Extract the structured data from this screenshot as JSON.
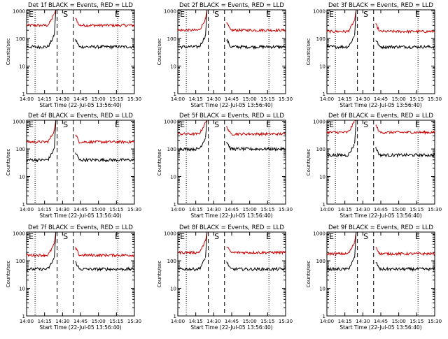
{
  "figure": {
    "x_title": "Start Time (22-Jul-05 13:56:40)",
    "y_title": "Counts/sec",
    "x_ticks": [
      "14:00",
      "14:15",
      "14:30",
      "14:45",
      "15:00",
      "15:15",
      "15:30"
    ],
    "y_ticks": [
      "1",
      "10",
      "100",
      "1000"
    ],
    "event_color": "#000000",
    "lld_color": "#cc0000"
  },
  "chart_data": [
    {
      "type": "line",
      "title": "Det 1f BLACK = Events, RED = LLD",
      "markers": [
        "E",
        "S",
        "E"
      ],
      "xlabel": "Start Time (22-Jul-05 13:56:40)",
      "ylabel": "Counts/sec",
      "yscale": "log",
      "ylim": [
        1,
        1100
      ],
      "xlim_minutes": [
        0,
        42
      ],
      "event_level": 50,
      "lld_level": 300,
      "gap_minutes": [
        36,
        50
      ],
      "series": [
        {
          "color": "#000000",
          "y": 50
        },
        {
          "color": "#cc0000",
          "y": 300
        }
      ]
    },
    {
      "type": "line",
      "title": "Det 2f BLACK = Events, RED = LLD",
      "markers": [
        "E",
        "S",
        "E"
      ],
      "xlabel": "Start Time (22-Jul-05 13:56:40)",
      "ylabel": "Counts/sec",
      "yscale": "log",
      "ylim": [
        1,
        1100
      ],
      "xlim_minutes": [
        0,
        42
      ],
      "event_level": 50,
      "lld_level": 200,
      "gap_minutes": [
        36,
        50
      ],
      "series": [
        {
          "color": "#000000",
          "y": 50
        },
        {
          "color": "#cc0000",
          "y": 200
        }
      ]
    },
    {
      "type": "line",
      "title": "Det 3f BLACK = Events, RED = LLD",
      "markers": [
        "E",
        "S",
        "E"
      ],
      "xlabel": "Start Time (22-Jul-05 13:56:40)",
      "ylabel": "Counts/sec",
      "yscale": "log",
      "ylim": [
        1,
        1100
      ],
      "xlim_minutes": [
        0,
        42
      ],
      "event_level": 50,
      "lld_level": 180,
      "gap_minutes": [
        36,
        50
      ],
      "series": [
        {
          "color": "#000000",
          "y": 50
        },
        {
          "color": "#cc0000",
          "y": 180
        }
      ]
    },
    {
      "type": "line",
      "title": "Det 4f BLACK = Events, RED = LLD",
      "markers": [
        "E",
        "S",
        "E"
      ],
      "xlabel": "Start Time (22-Jul-05 13:56:40)",
      "ylabel": "Counts/sec",
      "yscale": "log",
      "ylim": [
        1,
        1100
      ],
      "xlim_minutes": [
        0,
        42
      ],
      "event_level": 40,
      "lld_level": 180,
      "gap_minutes": [
        36,
        50
      ],
      "series": [
        {
          "color": "#000000",
          "y": 40
        },
        {
          "color": "#cc0000",
          "y": 180
        }
      ]
    },
    {
      "type": "line",
      "title": "Det 5f BLACK = Events, RED = LLD",
      "markers": [
        "E",
        "S",
        "E"
      ],
      "xlabel": "Start Time (22-Jul-05 13:56:40)",
      "ylabel": "Counts/sec",
      "yscale": "log",
      "ylim": [
        1,
        1100
      ],
      "xlim_minutes": [
        0,
        42
      ],
      "event_level": 100,
      "lld_level": 350,
      "gap_minutes": [
        36,
        50
      ],
      "series": [
        {
          "color": "#000000",
          "y": 100
        },
        {
          "color": "#cc0000",
          "y": 350
        }
      ]
    },
    {
      "type": "line",
      "title": "Det 6f BLACK = Events, RED = LLD",
      "markers": [
        "E",
        "S",
        "E"
      ],
      "xlabel": "Start Time (22-Jul-05 13:56:40)",
      "ylabel": "Counts/sec",
      "yscale": "log",
      "ylim": [
        1,
        1100
      ],
      "xlim_minutes": [
        0,
        42
      ],
      "event_level": 60,
      "lld_level": 400,
      "gap_minutes": [
        36,
        50
      ],
      "series": [
        {
          "color": "#000000",
          "y": 60
        },
        {
          "color": "#cc0000",
          "y": 400
        }
      ]
    },
    {
      "type": "line",
      "title": "Det 7f BLACK = Events, RED = LLD",
      "markers": [
        "E",
        "S",
        "E"
      ],
      "xlabel": "Start Time (22-Jul-05 13:56:40)",
      "ylabel": "Counts/sec",
      "yscale": "log",
      "ylim": [
        1,
        1100
      ],
      "xlim_minutes": [
        0,
        42
      ],
      "event_level": 50,
      "lld_level": 160,
      "gap_minutes": [
        36,
        50
      ],
      "series": [
        {
          "color": "#000000",
          "y": 50
        },
        {
          "color": "#cc0000",
          "y": 160
        }
      ]
    },
    {
      "type": "line",
      "title": "Det 8f BLACK = Events, RED = LLD",
      "markers": [
        "E",
        "S",
        "E"
      ],
      "xlabel": "Start Time (22-Jul-05 13:56:40)",
      "ylabel": "Counts/sec",
      "yscale": "log",
      "ylim": [
        1,
        1100
      ],
      "xlim_minutes": [
        0,
        42
      ],
      "event_level": 50,
      "lld_level": 200,
      "gap_minutes": [
        36,
        50
      ],
      "series": [
        {
          "color": "#000000",
          "y": 50
        },
        {
          "color": "#cc0000",
          "y": 200
        }
      ]
    },
    {
      "type": "line",
      "title": "Det 9f BLACK = Events, RED = LLD",
      "markers": [
        "E",
        "S",
        "E"
      ],
      "xlabel": "Start Time (22-Jul-05 13:56:40)",
      "ylabel": "Counts/sec",
      "yscale": "log",
      "ylim": [
        1,
        1100
      ],
      "xlim_minutes": [
        0,
        42
      ],
      "event_level": 50,
      "lld_level": 180,
      "gap_minutes": [
        36,
        50
      ],
      "series": [
        {
          "color": "#000000",
          "y": 50
        },
        {
          "color": "#cc0000",
          "y": 180
        }
      ]
    }
  ]
}
